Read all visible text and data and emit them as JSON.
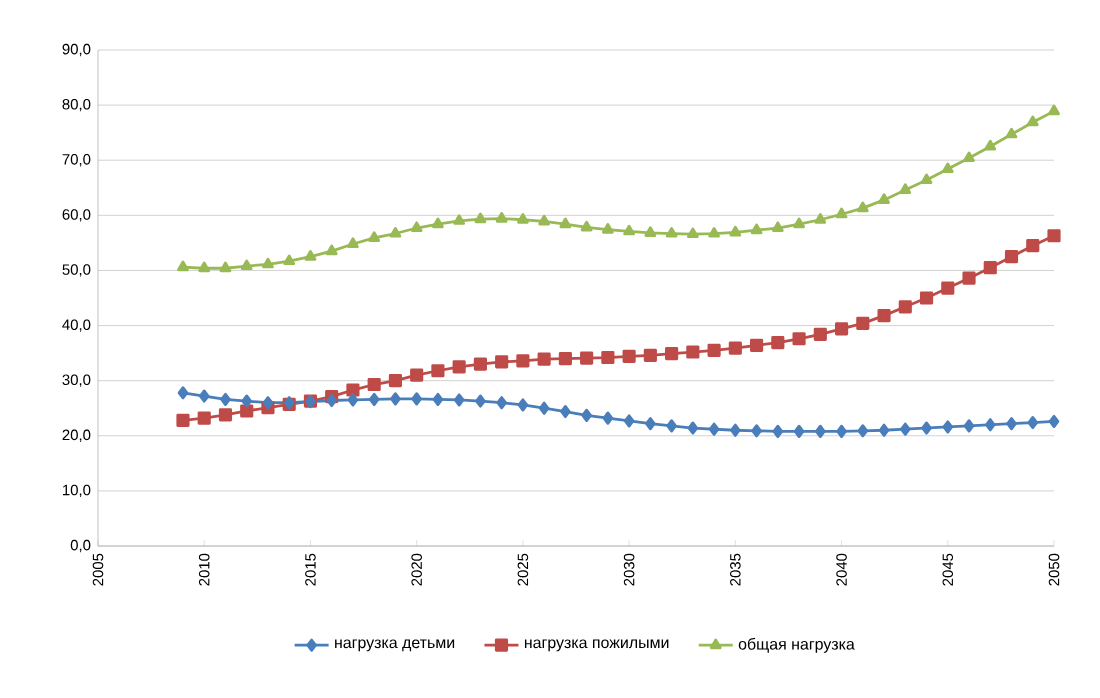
{
  "chart_data": {
    "type": "line",
    "x": [
      2009,
      2010,
      2011,
      2012,
      2013,
      2014,
      2015,
      2016,
      2017,
      2018,
      2019,
      2020,
      2021,
      2022,
      2023,
      2024,
      2025,
      2026,
      2027,
      2028,
      2029,
      2030,
      2031,
      2032,
      2033,
      2034,
      2035,
      2036,
      2037,
      2038,
      2039,
      2040,
      2041,
      2042,
      2043,
      2044,
      2045,
      2046,
      2047,
      2048,
      2049,
      2050
    ],
    "series": [
      {
        "name": "нагрузка детьми",
        "color": "#4a7ebb",
        "marker": "diamond",
        "values": [
          27.8,
          27.2,
          26.6,
          26.3,
          26.0,
          26.0,
          26.2,
          26.4,
          26.5,
          26.6,
          26.7,
          26.7,
          26.6,
          26.5,
          26.3,
          26.0,
          25.6,
          25.0,
          24.4,
          23.7,
          23.2,
          22.7,
          22.2,
          21.8,
          21.4,
          21.2,
          21.0,
          20.9,
          20.8,
          20.8,
          20.8,
          20.8,
          20.9,
          21.0,
          21.2,
          21.4,
          21.6,
          21.8,
          22.0,
          22.2,
          22.4,
          22.6
        ]
      },
      {
        "name": "нагрузка пожилыми",
        "color": "#be4b48",
        "marker": "square",
        "values": [
          22.8,
          23.2,
          23.8,
          24.5,
          25.1,
          25.7,
          26.3,
          27.1,
          28.3,
          29.3,
          30.0,
          31.0,
          31.8,
          32.5,
          33.0,
          33.4,
          33.6,
          33.9,
          34.0,
          34.1,
          34.2,
          34.4,
          34.6,
          34.9,
          35.2,
          35.5,
          35.9,
          36.4,
          36.9,
          37.6,
          38.4,
          39.4,
          40.4,
          41.8,
          43.4,
          45.0,
          46.8,
          48.6,
          50.5,
          52.5,
          54.5,
          56.3
        ]
      },
      {
        "name": "общая нагрузка",
        "color": "#98b954",
        "marker": "triangle",
        "values": [
          50.6,
          50.4,
          50.4,
          50.8,
          51.1,
          51.7,
          52.5,
          53.5,
          54.8,
          55.9,
          56.7,
          57.7,
          58.4,
          59.0,
          59.3,
          59.4,
          59.2,
          58.9,
          58.4,
          57.8,
          57.4,
          57.1,
          56.8,
          56.7,
          56.6,
          56.7,
          56.9,
          57.3,
          57.7,
          58.4,
          59.2,
          60.2,
          61.3,
          62.8,
          64.6,
          66.4,
          68.4,
          70.4,
          72.5,
          74.7,
          76.9,
          78.9
        ]
      }
    ],
    "xlim": [
      2005,
      2050
    ],
    "xticks": [
      2005,
      2010,
      2015,
      2020,
      2025,
      2030,
      2035,
      2040,
      2045,
      2050
    ],
    "ylim": [
      0,
      90
    ],
    "yticks": [
      {
        "value": 0,
        "label": "0,0"
      },
      {
        "value": 10,
        "label": "10,0"
      },
      {
        "value": 20,
        "label": "20,0"
      },
      {
        "value": 30,
        "label": "30,0"
      },
      {
        "value": 40,
        "label": "40,0"
      },
      {
        "value": 50,
        "label": "50,0"
      },
      {
        "value": 60,
        "label": "60,0"
      },
      {
        "value": 70,
        "label": "70,0"
      },
      {
        "value": 80,
        "label": "80,0"
      },
      {
        "value": 90,
        "label": "90,0"
      }
    ],
    "grid": "y",
    "legend": "bottom",
    "line_style": "solid"
  }
}
